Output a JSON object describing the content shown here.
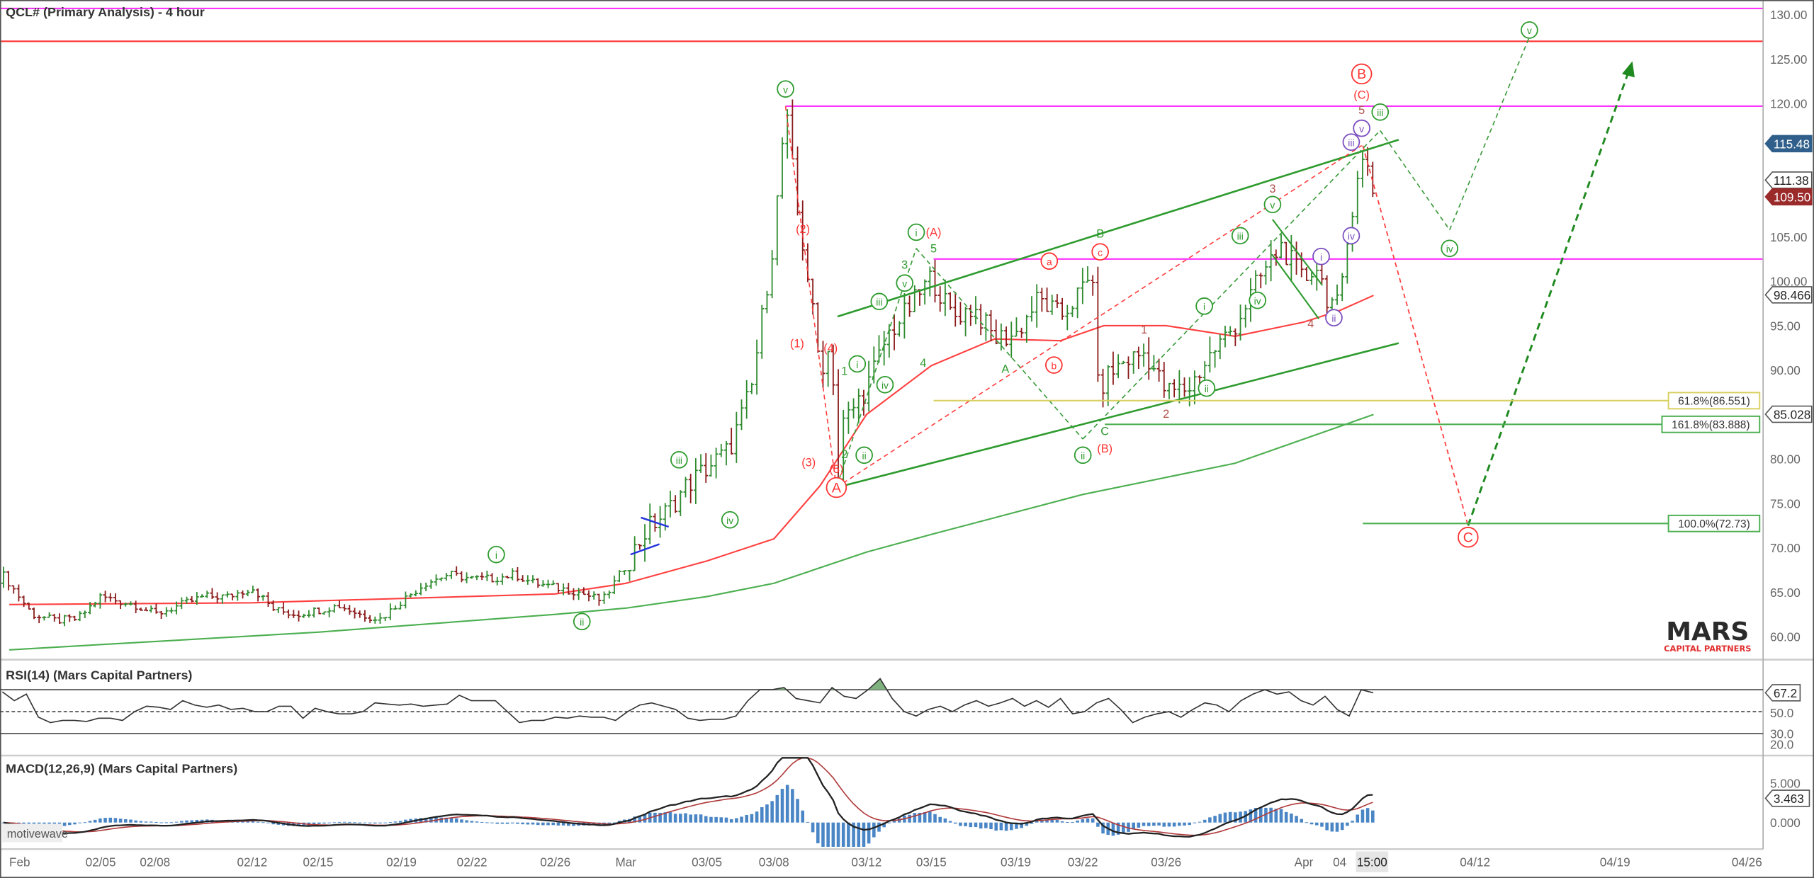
{
  "title": "QCL# (Primary Analysis) - 4 hour",
  "rsi_title": "RSI(14) (Mars Capital Partners)",
  "macd_title": "MACD(12,26,9) (Mars Capital Partners)",
  "watermark": "motivewave",
  "logo": {
    "main": "MARS",
    "sub": "CAPITAL PARTNERS",
    "main_color": "#2b2b2b",
    "accent": "#e03030"
  },
  "price_axis": {
    "ticks": [
      "130.00",
      "125.00",
      "120.00",
      "105.00",
      "100.00",
      "95.00",
      "90.00",
      "80.00",
      "75.00",
      "70.00",
      "65.00",
      "60.00"
    ]
  },
  "price_tags": [
    {
      "value": "115.48",
      "bg": "#2f5f8a",
      "fg": "#ffffff"
    },
    {
      "value": "111.38",
      "bg": "#ffffff",
      "fg": "#222222"
    },
    {
      "value": "109.50",
      "bg": "#9b2a2a",
      "fg": "#ffffff"
    },
    {
      "value": "98.466",
      "bg": "#ffffff",
      "fg": "#222222"
    },
    {
      "value": "85.028",
      "bg": "#ffffff",
      "fg": "#222222"
    }
  ],
  "fib_levels": [
    {
      "label": "61.8%(86.551)",
      "price": 86.551,
      "color": "#d8d060"
    },
    {
      "label": "161.8%(83.888)",
      "price": 83.888,
      "color": "#4caf50"
    },
    {
      "label": "100.0%(72.73)",
      "price": 72.73,
      "color": "#4caf50"
    }
  ],
  "rsi_axis": {
    "current": "67.2",
    "ticks": [
      "50.0",
      "30.0",
      "20.0"
    ]
  },
  "macd_axis": {
    "current": "3.463",
    "ticks": [
      "5.000",
      "0.000"
    ]
  },
  "x_axis": {
    "ticks": [
      "Feb",
      "02/05",
      "02/08",
      "02/12",
      "02/15",
      "02/19",
      "02/22",
      "02/26",
      "Mar",
      "03/05",
      "03/08",
      "03/12",
      "03/15",
      "03/19",
      "03/22",
      "03/26",
      "Apr",
      "04",
      "04/12",
      "04/19",
      "04/26"
    ],
    "cursor_label": "15:00"
  },
  "colors": {
    "up_bar": "#2e8b2e",
    "down_bar": "#8b1a1a",
    "magenta": "#ff33ff",
    "red": "#ff3333",
    "green": "#2e9b2e",
    "purple": "#7b4fc0",
    "brown": "#b0504a",
    "macd": "#222222",
    "signal": "#b03a3a",
    "hist": "#4a86c5"
  },
  "waves": [
    {
      "text": "v",
      "color": "#2e9b2e",
      "circled": true
    },
    {
      "text": "(2)",
      "color": "#ff3333",
      "circled": false
    },
    {
      "text": "(1)",
      "color": "#ff3333",
      "circled": false
    },
    {
      "text": "(4)",
      "color": "#ff3333",
      "circled": false
    },
    {
      "text": "(3)",
      "color": "#ff3333",
      "circled": false
    },
    {
      "text": "(5)",
      "color": "#ff3333",
      "circled": false
    },
    {
      "text": "A",
      "color": "#ff3333",
      "circled": true,
      "big": true
    },
    {
      "text": "1",
      "color": "#2e9b2e",
      "circled": false
    },
    {
      "text": "i",
      "color": "#2e9b2e",
      "circled": true
    },
    {
      "text": "2",
      "color": "#2e9b2e",
      "circled": false
    },
    {
      "text": "ii",
      "color": "#2e9b2e",
      "circled": true
    },
    {
      "text": "iii",
      "color": "#2e9b2e",
      "circled": true
    },
    {
      "text": "iv",
      "color": "#2e9b2e",
      "circled": true
    },
    {
      "text": "v",
      "color": "#2e9b2e",
      "circled": true
    },
    {
      "text": "3",
      "color": "#2e9b2e",
      "circled": false
    },
    {
      "text": "i",
      "color": "#2e9b2e",
      "circled": true
    },
    {
      "text": "(A)",
      "color": "#ff3333",
      "circled": false
    },
    {
      "text": "5",
      "color": "#2e9b2e",
      "circled": false
    },
    {
      "text": "4",
      "color": "#2e9b2e",
      "circled": false
    },
    {
      "text": "A",
      "color": "#2e9b2e",
      "circled": false
    },
    {
      "text": "a",
      "color": "#ff3333",
      "circled": true
    },
    {
      "text": "b",
      "color": "#ff3333",
      "circled": true
    },
    {
      "text": "B",
      "color": "#2e9b2e",
      "circled": false
    },
    {
      "text": "c",
      "color": "#ff3333",
      "circled": true
    },
    {
      "text": "C",
      "color": "#2e9b2e",
      "circled": false
    },
    {
      "text": "ii",
      "color": "#2e9b2e",
      "circled": true
    },
    {
      "text": "(B)",
      "color": "#ff3333",
      "circled": false
    },
    {
      "text": "1",
      "color": "#b0504a",
      "circled": false
    },
    {
      "text": "2",
      "color": "#b0504a",
      "circled": false
    },
    {
      "text": "i",
      "color": "#2e9b2e",
      "circled": true
    },
    {
      "text": "ii",
      "color": "#2e9b2e",
      "circled": true
    },
    {
      "text": "iii",
      "color": "#2e9b2e",
      "circled": true
    },
    {
      "text": "iv",
      "color": "#2e9b2e",
      "circled": true
    },
    {
      "text": "v",
      "color": "#2e9b2e",
      "circled": true
    },
    {
      "text": "3",
      "color": "#b0504a",
      "circled": false
    },
    {
      "text": "i",
      "color": "#7b4fc0",
      "circled": true
    },
    {
      "text": "ii",
      "color": "#7b4fc0",
      "circled": true
    },
    {
      "text": "4",
      "color": "#b0504a",
      "circled": false
    },
    {
      "text": "iii",
      "color": "#7b4fc0",
      "circled": true
    },
    {
      "text": "iv",
      "color": "#7b4fc0",
      "circled": true
    },
    {
      "text": "v",
      "color": "#7b4fc0",
      "circled": true
    },
    {
      "text": "5",
      "color": "#b0504a",
      "circled": false
    },
    {
      "text": "(C)",
      "color": "#ff3333",
      "circled": false
    },
    {
      "text": "B",
      "color": "#ff3333",
      "circled": true,
      "big": true
    },
    {
      "text": "iii",
      "color": "#2e9b2e",
      "circled": true
    },
    {
      "text": "iv",
      "color": "#2e9b2e",
      "circled": true
    },
    {
      "text": "v",
      "color": "#2e9b2e",
      "circled": true
    },
    {
      "text": "C",
      "color": "#ff3333",
      "circled": true,
      "big": true
    },
    {
      "text": "i",
      "color": "#2e9b2e",
      "circled": true
    },
    {
      "text": "ii",
      "color": "#2e9b2e",
      "circled": true
    },
    {
      "text": "iii",
      "color": "#2e9b2e",
      "circled": true
    },
    {
      "text": "iv",
      "color": "#2e9b2e",
      "circled": true
    }
  ],
  "chart_data": {
    "type": "ohlc",
    "ylim": [
      57,
      131
    ],
    "grid": false,
    "price": [
      [
        "02/01",
        66
      ],
      [
        "02/02",
        62.5
      ],
      [
        "02/03",
        61.8
      ],
      [
        "02/04",
        62
      ],
      [
        "02/05",
        64.5
      ],
      [
        "02/07",
        63.5
      ],
      [
        "02/08",
        62.5
      ],
      [
        "02/09",
        63.5
      ],
      [
        "02/10",
        64.5
      ],
      [
        "02/11",
        64.5
      ],
      [
        "02/12",
        65.5
      ],
      [
        "02/13",
        63
      ],
      [
        "02/14",
        62.5
      ],
      [
        "02/15",
        63
      ],
      [
        "02/16",
        63.5
      ],
      [
        "02/17",
        62.5
      ],
      [
        "02/18",
        62
      ],
      [
        "02/19",
        64
      ],
      [
        "02/20",
        66
      ],
      [
        "02/21",
        67
      ],
      [
        "02/22",
        66.5
      ],
      [
        "02/23",
        66.5
      ],
      [
        "02/24",
        67
      ],
      [
        "02/25",
        66
      ],
      [
        "02/26",
        65.5
      ],
      [
        "02/27",
        65
      ],
      [
        "02/28",
        64
      ],
      [
        "03/01",
        68
      ],
      [
        "03/02",
        72
      ],
      [
        "03/03",
        74
      ],
      [
        "03/04",
        77
      ],
      [
        "03/05",
        79
      ],
      [
        "03/06",
        81
      ],
      [
        "03/07",
        88
      ],
      [
        "03/08",
        105
      ],
      [
        "03/08 12:00",
        119.5
      ],
      [
        "03/09 00:00",
        108
      ],
      [
        "03/09 12:00",
        100
      ],
      [
        "03/10 00:00",
        90
      ],
      [
        "03/10 12:00",
        93
      ],
      [
        "03/10 18:00",
        77
      ],
      [
        "03/11",
        84
      ],
      [
        "03/11 12:00",
        86
      ],
      [
        "03/12",
        88
      ],
      [
        "03/13",
        94
      ],
      [
        "03/14",
        97
      ],
      [
        "03/15",
        100.5
      ],
      [
        "03/16",
        96
      ],
      [
        "03/17",
        97
      ],
      [
        "03/18",
        93.5
      ],
      [
        "03/19",
        94
      ],
      [
        "03/20",
        98
      ],
      [
        "03/21",
        96
      ],
      [
        "03/22 15:00",
        101
      ],
      [
        "03/22 18:00",
        84.5
      ],
      [
        "03/23",
        89
      ],
      [
        "03/24",
        91
      ],
      [
        "03/25",
        92
      ],
      [
        "03/26",
        87.5
      ],
      [
        "03/27",
        88
      ],
      [
        "03/28",
        92
      ],
      [
        "03/29",
        95
      ],
      [
        "03/30",
        100
      ],
      [
        "03/31",
        104
      ],
      [
        "04/01",
        100
      ],
      [
        "04/02",
        102
      ],
      [
        "04/03",
        98
      ],
      [
        "04/04",
        97
      ],
      [
        "04/04 12:00",
        105
      ],
      [
        "04/05",
        112
      ],
      [
        "04/05 12:00",
        114
      ],
      [
        "04/06",
        109.5
      ]
    ],
    "moving_averages": [
      {
        "color": "#ff4040",
        "points": [
          [
            "02/01",
            63.6
          ],
          [
            "02/12",
            63.8
          ],
          [
            "02/26",
            64.8
          ],
          [
            "03/01",
            66
          ],
          [
            "03/05",
            68.5
          ],
          [
            "03/08",
            71
          ],
          [
            "03/10",
            77
          ],
          [
            "03/12",
            85
          ],
          [
            "03/15",
            90.5
          ],
          [
            "03/18",
            93.5
          ],
          [
            "03/21",
            93.3
          ],
          [
            "03/23",
            95
          ],
          [
            "03/26",
            95
          ],
          [
            "03/29",
            93.8
          ],
          [
            "04/01",
            95.4
          ],
          [
            "04/04",
            96.7
          ],
          [
            "04/06",
            98.4
          ]
        ]
      },
      {
        "color": "#4caf50",
        "points": [
          [
            "02/01",
            58.5
          ],
          [
            "02/15",
            60.5
          ],
          [
            "02/26",
            62.5
          ],
          [
            "03/01",
            63.2
          ],
          [
            "03/05",
            64.5
          ],
          [
            "03/08",
            66
          ],
          [
            "03/12",
            69.5
          ],
          [
            "03/15",
            71.5
          ],
          [
            "03/22",
            76
          ],
          [
            "03/29",
            79.5
          ],
          [
            "04/06",
            85
          ]
        ]
      }
    ],
    "levels": [
      {
        "price": 130.7,
        "color": "#ff33ff"
      },
      {
        "price": 127,
        "color": "#ff3333"
      },
      {
        "price": 119.7,
        "color": "#ff33ff"
      },
      {
        "price": 102.5,
        "color": "#ff33ff"
      }
    ],
    "rsi": {
      "overbought": 70,
      "midline": 50,
      "oversold": 30,
      "values": [
        68,
        60,
        66,
        45,
        40,
        42,
        42,
        41,
        44,
        44,
        42,
        50,
        55,
        54,
        52,
        60,
        56,
        54,
        56,
        52,
        53,
        50,
        50,
        55,
        55,
        44,
        53,
        50,
        48,
        48,
        50,
        58,
        57,
        56,
        57,
        55,
        56,
        57,
        65,
        60,
        60,
        60,
        50,
        40,
        42,
        42,
        45,
        44,
        46,
        45,
        45,
        42,
        50,
        56,
        58,
        55,
        52,
        44,
        42,
        43,
        43,
        46,
        60,
        70,
        70,
        72,
        62,
        60,
        58,
        72,
        64,
        62,
        70,
        80,
        62,
        50,
        46,
        52,
        55,
        50,
        56,
        60,
        55,
        58,
        62,
        55,
        60,
        54,
        62,
        48,
        50,
        58,
        62,
        52,
        40,
        45,
        48,
        50,
        45,
        52,
        58,
        56,
        50,
        60,
        66,
        70,
        66,
        68,
        60,
        56,
        64,
        52,
        46,
        70,
        67.2
      ]
    }
  }
}
